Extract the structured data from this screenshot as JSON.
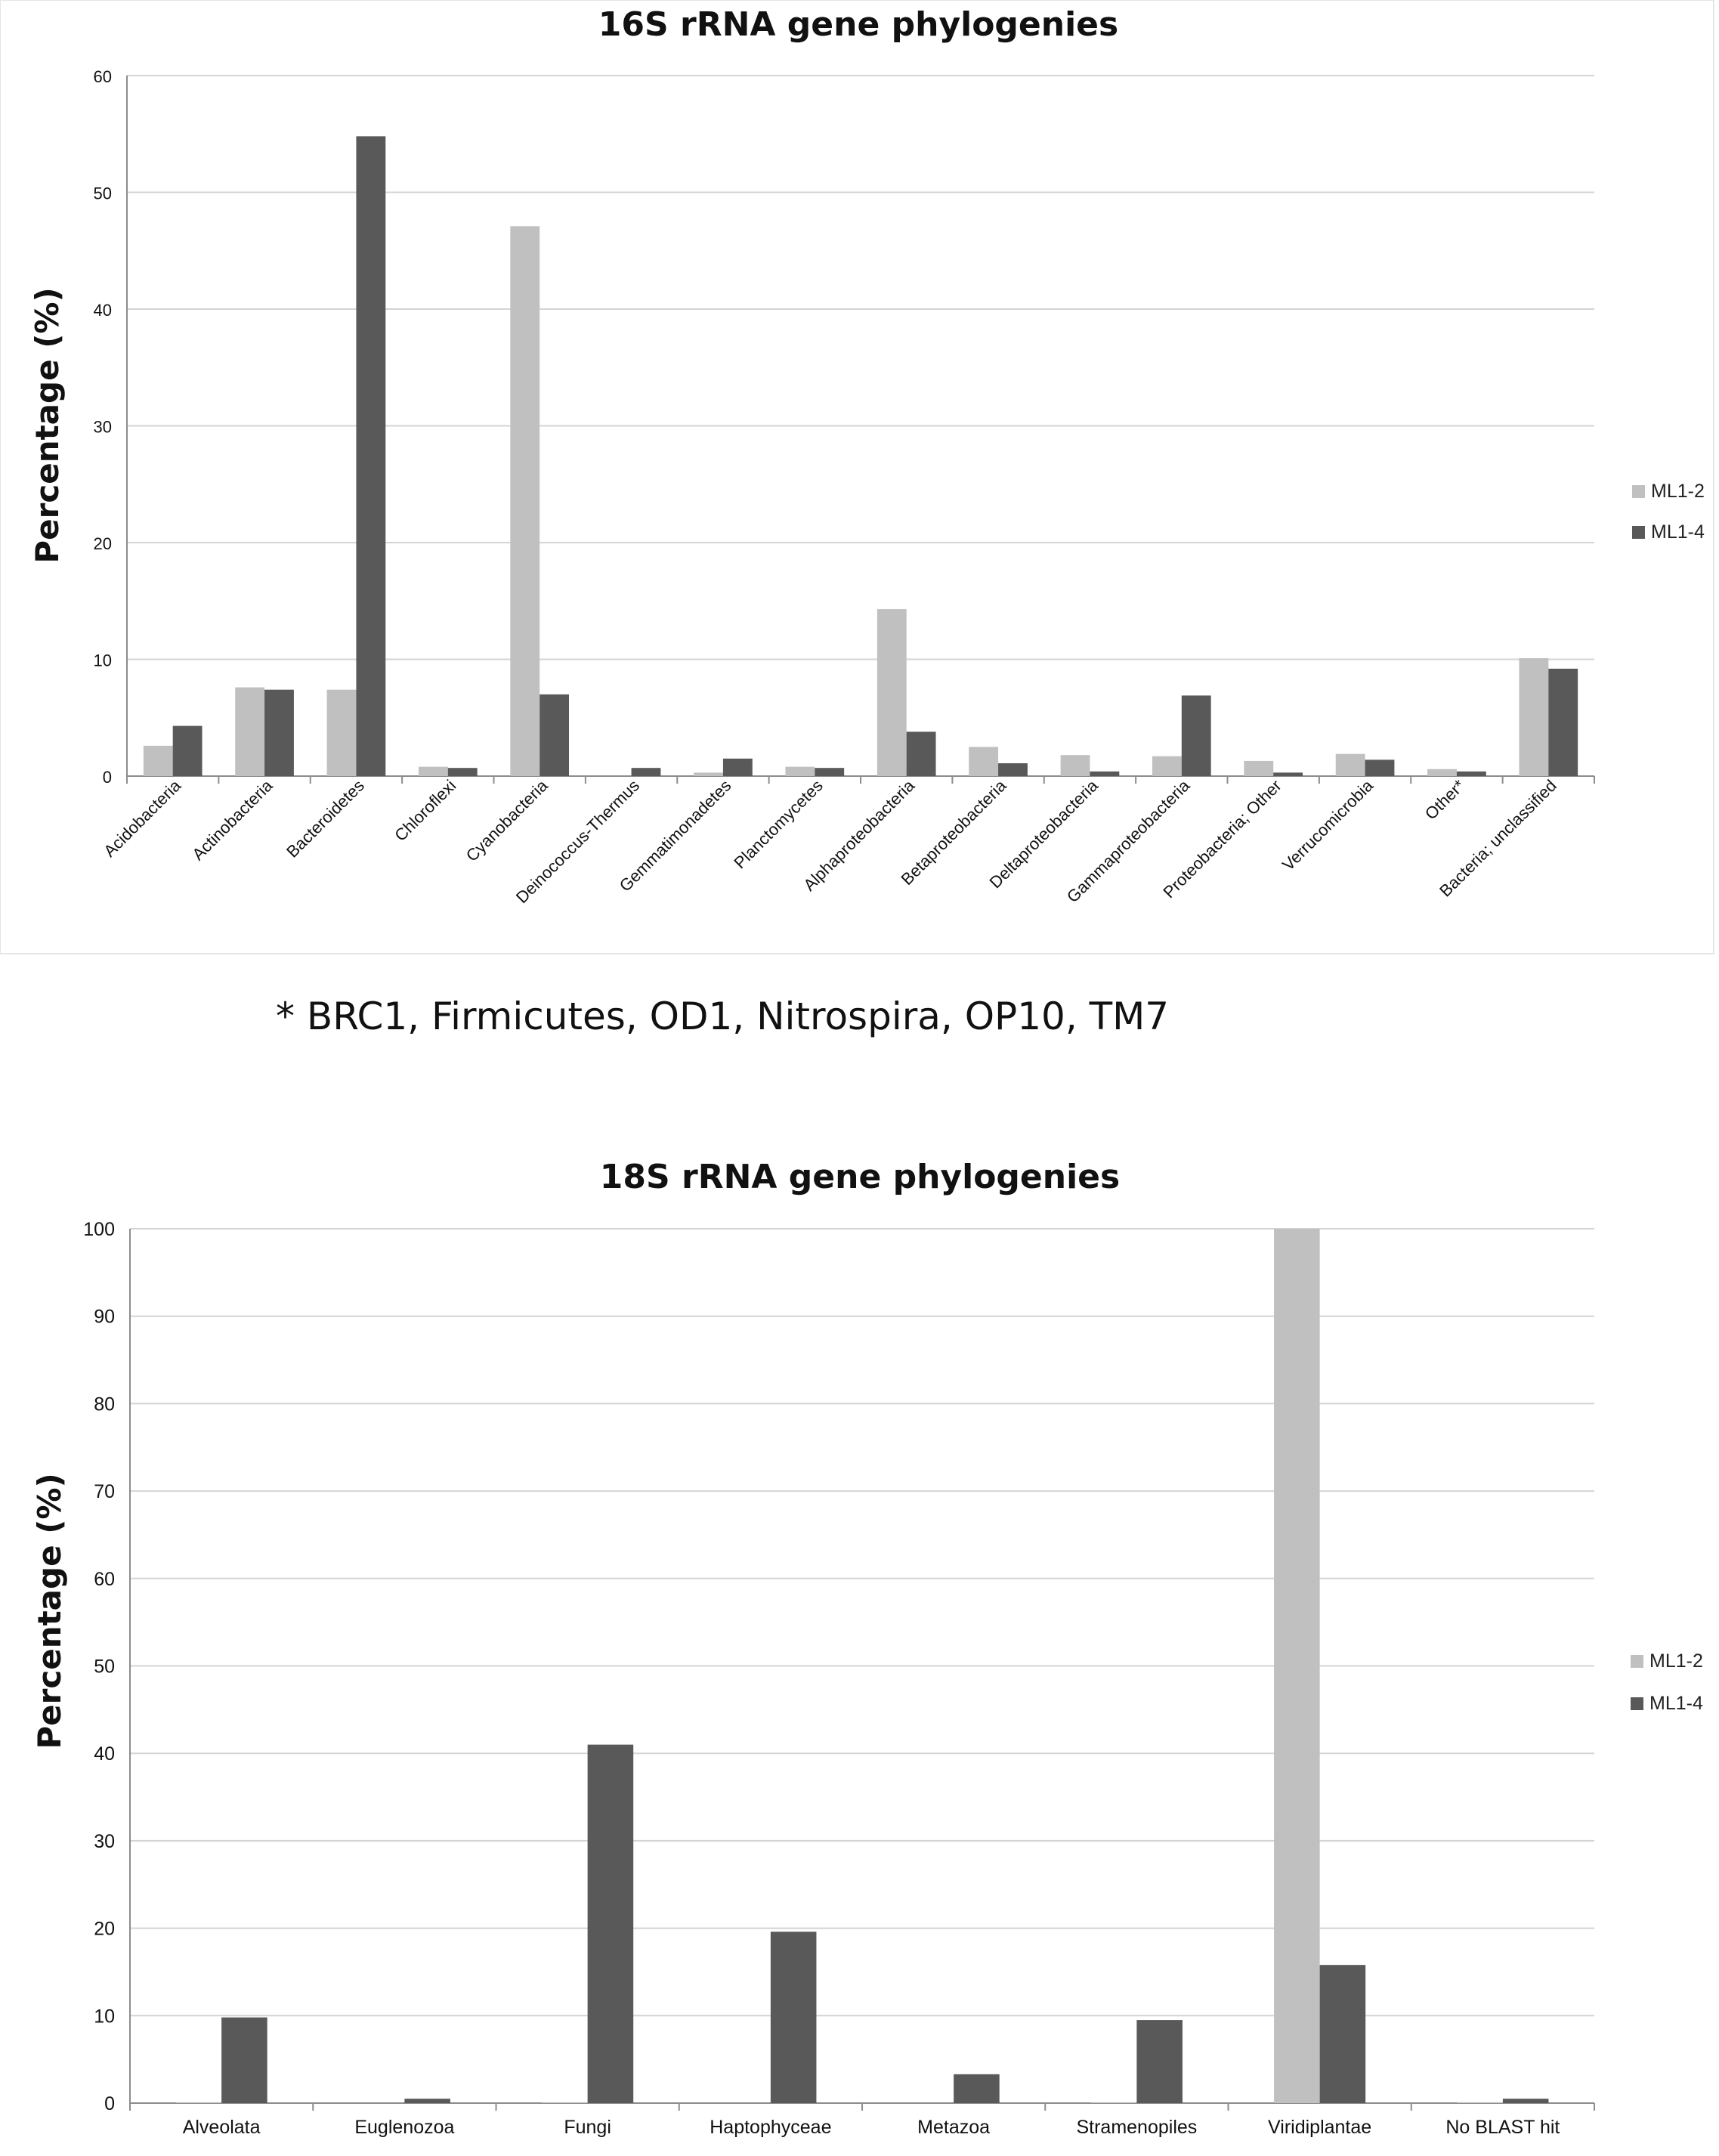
{
  "chart_data": [
    {
      "type": "bar",
      "title": "16S rRNA gene phylogenies",
      "xlabel": "",
      "ylabel": "Percentage (%)",
      "ylim": [
        0,
        60
      ],
      "yticks": [
        0,
        10,
        20,
        30,
        40,
        50,
        60
      ],
      "grid": true,
      "legend_position": "right",
      "categories": [
        "Acidobacteria",
        "Actinobacteria",
        "Bacteroidetes",
        "Chloroflexi",
        "Cyanobacteria",
        "Deinococcus-Thermus",
        "Gemmatimonadetes",
        "Planctomycetes",
        "Alphaproteobacteria",
        "Betaproteobacteria",
        "Deltaproteobacteria",
        "Gammaproteobacteria",
        "Proteobacteria; Other",
        "Verrucomicrobia",
        "Other*",
        "Bacteria; unclassified"
      ],
      "series": [
        {
          "name": "ML1-2",
          "color": "#c0c0c0",
          "values": [
            2.6,
            7.6,
            7.4,
            0.8,
            47.1,
            0.0,
            0.3,
            0.8,
            14.3,
            2.5,
            1.8,
            1.7,
            1.3,
            1.9,
            0.6,
            10.1
          ]
        },
        {
          "name": "ML1-4",
          "color": "#595959",
          "values": [
            4.3,
            7.4,
            54.8,
            0.7,
            7.0,
            0.7,
            1.5,
            0.7,
            3.8,
            1.1,
            0.4,
            6.9,
            0.3,
            1.4,
            0.4,
            9.2
          ]
        }
      ]
    },
    {
      "type": "bar",
      "title": "18S rRNA gene phylogenies",
      "xlabel": "",
      "ylabel": "Percentage (%)",
      "ylim": [
        0,
        100
      ],
      "yticks": [
        0,
        10,
        20,
        30,
        40,
        50,
        60,
        70,
        80,
        90,
        100
      ],
      "grid": true,
      "legend_position": "right",
      "categories": [
        "Alveolata",
        "Euglenozoa",
        "Fungi",
        "Haptophyceae",
        "Metazoa",
        "Stramenopiles",
        "Viridiplantae",
        "No BLAST hit"
      ],
      "series": [
        {
          "name": "ML1-2",
          "color": "#c0c0c0",
          "values": [
            0.1,
            0.0,
            0.1,
            0.0,
            0.0,
            0.1,
            100,
            0.1
          ]
        },
        {
          "name": "ML1-4",
          "color": "#595959",
          "values": [
            9.8,
            0.5,
            41.0,
            19.6,
            3.3,
            9.5,
            15.8,
            0.5
          ]
        }
      ]
    }
  ],
  "footnote": "* BRC1, Firmicutes, OD1, Nitrospira, OP10, TM7"
}
